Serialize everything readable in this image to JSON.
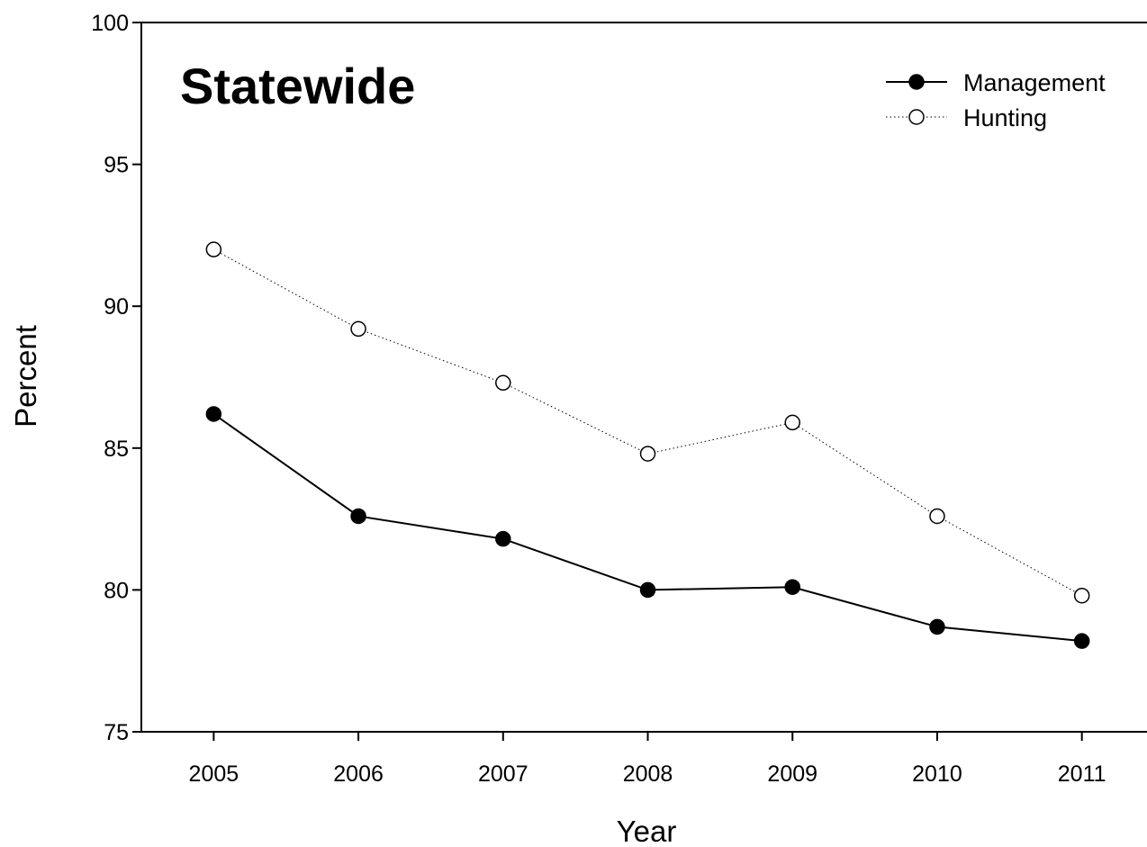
{
  "chart_data": {
    "type": "line",
    "title": "Statewide",
    "xlabel": "Year",
    "ylabel": "Percent",
    "x": [
      2005,
      2006,
      2007,
      2008,
      2009,
      2010,
      2011
    ],
    "x_tick_labels": [
      "2005",
      "2006",
      "2007",
      "2008",
      "2009",
      "2010",
      "2011"
    ],
    "y_ticks": [
      75,
      80,
      85,
      90,
      95,
      100
    ],
    "y_tick_labels": [
      "75",
      "80",
      "85",
      "90",
      "95",
      "100"
    ],
    "ylim": [
      75,
      100
    ],
    "xlim": [
      2004.5,
      2011.45
    ],
    "grid": false,
    "legend_position": "top-right",
    "series": [
      {
        "name": "Management",
        "values": [
          86.2,
          82.6,
          81.8,
          80.0,
          80.1,
          78.7,
          78.2
        ],
        "line_style": "solid",
        "marker": "filled-circle",
        "color": "#000000"
      },
      {
        "name": "Hunting",
        "values": [
          92.0,
          89.2,
          87.3,
          84.8,
          85.9,
          82.6,
          79.8
        ],
        "line_style": "dotted",
        "marker": "open-circle",
        "color": "#000000"
      }
    ]
  }
}
